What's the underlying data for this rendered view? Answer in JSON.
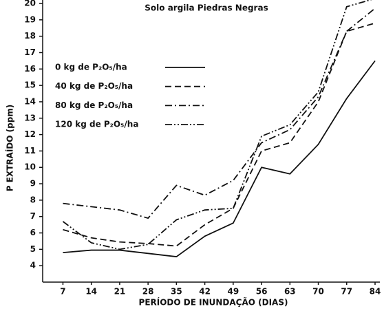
{
  "chart_data": {
    "type": "line",
    "title": "Solo argila Piedras Negras",
    "xlabel": "PERÍODO DE INUNDAÇÃO (DIAS)",
    "ylabel": "P EXTRAÍDO (ppm)",
    "x": [
      7,
      14,
      21,
      28,
      35,
      42,
      49,
      56,
      63,
      70,
      77,
      84
    ],
    "xlim": [
      2,
      84
    ],
    "xticks": [
      7,
      14,
      21,
      28,
      35,
      42,
      49,
      56,
      63,
      70,
      77,
      84
    ],
    "ylim": [
      3,
      20
    ],
    "yticks": [
      4,
      5,
      6,
      7,
      8,
      9,
      10,
      11,
      12,
      13,
      14,
      15,
      16,
      17,
      18,
      19,
      20
    ],
    "grid": false,
    "series": [
      {
        "name": "0 kg de P₂O₅/ha",
        "color": "#111111",
        "line_style": "solid",
        "values": [
          4.8,
          4.95,
          4.95,
          4.75,
          4.55,
          5.8,
          6.6,
          10.0,
          9.6,
          11.4,
          14.2,
          16.5
        ]
      },
      {
        "name": "40 kg de P₂O₅/ha",
        "color": "#111111",
        "line_style": "dashed",
        "values": [
          6.2,
          5.7,
          5.45,
          5.35,
          5.2,
          6.5,
          7.5,
          11.0,
          11.5,
          14.0,
          18.3,
          18.8
        ]
      },
      {
        "name": "80 kg de P₂O₅/ha",
        "color": "#111111",
        "line_style": "dashdot",
        "values": [
          7.8,
          7.6,
          7.4,
          6.9,
          8.9,
          8.3,
          9.2,
          11.5,
          12.3,
          14.3,
          18.3,
          19.7
        ]
      },
      {
        "name": "120 kg de P₂O₅/ha",
        "color": "#111111",
        "line_style": "dashdotdot",
        "values": [
          6.7,
          5.4,
          5.0,
          5.3,
          6.8,
          7.4,
          7.5,
          11.9,
          12.6,
          14.6,
          19.8,
          20.3
        ]
      }
    ]
  }
}
